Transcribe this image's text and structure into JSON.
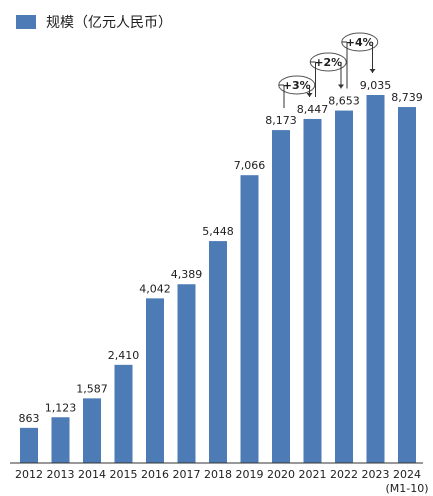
{
  "chart_data": {
    "type": "bar",
    "categories": [
      "2012",
      "2013",
      "2014",
      "2015",
      "2016",
      "2017",
      "2018",
      "2019",
      "2020",
      "2021",
      "2022",
      "2023",
      "2024"
    ],
    "category_sublabels": {
      "12": "(M1-10)"
    },
    "series": [
      {
        "name": "规模（亿元人民币）",
        "values": [
          863,
          1123,
          1587,
          2410,
          4042,
          4389,
          5448,
          7066,
          8173,
          8447,
          8653,
          9035,
          8739
        ]
      }
    ],
    "data_labels": [
      "863",
      "1,123",
      "1,587",
      "2,410",
      "4,042",
      "4,389",
      "5,448",
      "7,066",
      "8,173",
      "8,447",
      "8,653",
      "9,035",
      "8,739"
    ],
    "ylim": [
      0,
      9035
    ],
    "grid": false,
    "legend_position": "top-left",
    "growth_annotations": [
      {
        "label": "+3%",
        "from_index": 8,
        "to_index": 9
      },
      {
        "label": "+2%",
        "from_index": 9,
        "to_index": 10
      },
      {
        "label": "+4%",
        "from_index": 10,
        "to_index": 11
      }
    ],
    "colors": {
      "bar": "#4d7bb5",
      "text": "#1e1e1e",
      "axis": "#333333"
    }
  }
}
